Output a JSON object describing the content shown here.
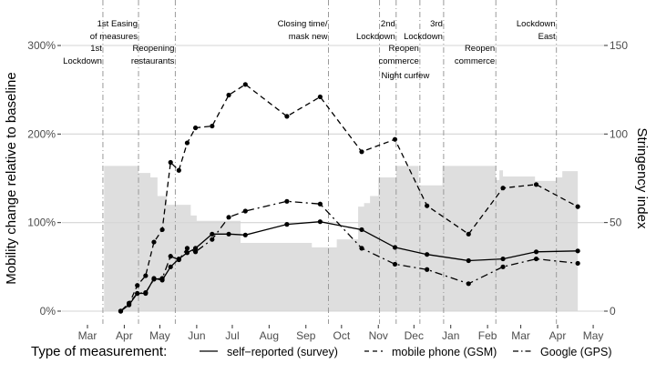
{
  "chart_data": {
    "type": "line",
    "ylabel": "Mobility change relative to baseline",
    "y2label": "Stringency index",
    "ylim": [
      0,
      300
    ],
    "y2lim": [
      0,
      150
    ],
    "xlim": [
      "2020-03-01",
      "2021-05-01"
    ],
    "yticks": [
      "0%",
      "100%",
      "200%",
      "300%"
    ],
    "yticks_values": [
      0,
      100,
      200,
      300
    ],
    "y2ticks": [
      "0",
      "50",
      "100",
      "150"
    ],
    "y2ticks_values": [
      0,
      50,
      100,
      150
    ],
    "xticks": [
      {
        "label": "Mar",
        "date": "2020-03-01"
      },
      {
        "label": "Apr",
        "date": "2020-04-01"
      },
      {
        "label": "May",
        "date": "2020-05-01"
      },
      {
        "label": "Jun",
        "date": "2020-06-01"
      },
      {
        "label": "Jul",
        "date": "2020-07-01"
      },
      {
        "label": "Aug",
        "date": "2020-08-01"
      },
      {
        "label": "Sep",
        "date": "2020-09-01"
      },
      {
        "label": "Oct",
        "date": "2020-10-01"
      },
      {
        "label": "Nov",
        "date": "2020-11-01"
      },
      {
        "label": "Dec",
        "date": "2020-12-01"
      },
      {
        "label": "Jan",
        "date": "2021-01-01"
      },
      {
        "label": "Feb",
        "date": "2021-02-01"
      },
      {
        "label": "Mar",
        "date": "2021-03-01"
      },
      {
        "label": "Apr",
        "date": "2021-04-01"
      },
      {
        "label": "May",
        "date": "2021-05-01"
      }
    ],
    "grid": true,
    "legend": {
      "title": "Type of measurement:",
      "placement": "bottom",
      "entries": [
        "self−reported (survey)",
        "mobile phone (GSM)",
        "Google (GPS)"
      ]
    },
    "series": [
      {
        "name": "self−reported (survey)",
        "style": "solid",
        "x": [
          "2020-03-29",
          "2020-04-05",
          "2020-04-12",
          "2020-04-19",
          "2020-04-26",
          "2020-05-03",
          "2020-05-10",
          "2020-05-17",
          "2020-05-24",
          "2020-05-31",
          "2020-06-14",
          "2020-06-28",
          "2020-07-12",
          "2020-08-16",
          "2020-09-13",
          "2020-10-18",
          "2020-11-15",
          "2020-12-12",
          "2021-01-16",
          "2021-02-14",
          "2021-03-14",
          "2021-04-18"
        ],
        "values": [
          0,
          7,
          20,
          20,
          37,
          35,
          50,
          59,
          66,
          71,
          87,
          87,
          86,
          98,
          101,
          92,
          72,
          64,
          57,
          59,
          67,
          68
        ]
      },
      {
        "name": "mobile phone (GSM)",
        "style": "dashed",
        "x": [
          "2020-03-29",
          "2020-04-05",
          "2020-04-12",
          "2020-04-19",
          "2020-04-26",
          "2020-05-03",
          "2020-05-10",
          "2020-05-17",
          "2020-05-24",
          "2020-05-31",
          "2020-06-14",
          "2020-06-28",
          "2020-07-12",
          "2020-08-16",
          "2020-09-13",
          "2020-10-18",
          "2020-11-15",
          "2020-12-12",
          "2021-01-16",
          "2021-02-14",
          "2021-03-14",
          "2021-04-18"
        ],
        "values": [
          0,
          8,
          29,
          40,
          78,
          92,
          168,
          159,
          190,
          207,
          209,
          244,
          256,
          220,
          242,
          180,
          194,
          119,
          87,
          139,
          143,
          118
        ]
      },
      {
        "name": "Google (GPS)",
        "style": "dotdash",
        "x": [
          "2020-03-29",
          "2020-04-05",
          "2020-04-12",
          "2020-04-19",
          "2020-04-26",
          "2020-05-03",
          "2020-05-10",
          "2020-05-17",
          "2020-05-24",
          "2020-05-31",
          "2020-06-14",
          "2020-06-28",
          "2020-07-12",
          "2020-08-16",
          "2020-09-13",
          "2020-10-18",
          "2020-11-15",
          "2020-12-12",
          "2021-01-16",
          "2021-02-14",
          "2021-03-14",
          "2021-04-18"
        ],
        "values": [
          0,
          9,
          20,
          21,
          36,
          37,
          62,
          58,
          71,
          67,
          81,
          106,
          113,
          124,
          121,
          71,
          53,
          47,
          31,
          50,
          59,
          54
        ]
      }
    ],
    "stringency": {
      "name": "Stringency index",
      "axis": "right",
      "type": "step-area",
      "steps": [
        [
          "2020-03-15",
          82
        ],
        [
          "2020-04-13",
          78
        ],
        [
          "2020-04-23",
          75.5
        ],
        [
          "2020-04-29",
          65
        ],
        [
          "2020-05-07",
          60
        ],
        [
          "2020-05-27",
          54
        ],
        [
          "2020-06-01",
          51
        ],
        [
          "2020-07-08",
          38.5
        ],
        [
          "2020-09-06",
          36
        ],
        [
          "2020-09-27",
          40.5
        ],
        [
          "2020-10-15",
          59
        ],
        [
          "2020-10-20",
          61
        ],
        [
          "2020-10-25",
          65
        ],
        [
          "2020-11-01",
          75.5
        ],
        [
          "2020-11-16",
          82
        ],
        [
          "2020-12-05",
          71
        ],
        [
          "2020-12-25",
          82
        ],
        [
          "2021-02-08",
          74
        ],
        [
          "2021-02-11",
          79.5
        ],
        [
          "2021-02-14",
          76
        ],
        [
          "2021-03-13",
          73.5
        ],
        [
          "2021-03-31",
          75.5
        ],
        [
          "2021-04-05",
          79
        ]
      ],
      "end": "2021-04-18"
    },
    "annotations": [
      {
        "date": "2020-03-14",
        "lines": [
          "1st",
          "Lockdown"
        ],
        "row": "lower",
        "align": "right"
      },
      {
        "date": "2020-04-13",
        "lines": [
          "1st Easing",
          "of measures"
        ],
        "row": "upper",
        "align": "right"
      },
      {
        "date": "2020-05-14",
        "lines": [
          "Reopening",
          "restaurants"
        ],
        "row": "lower",
        "align": "right"
      },
      {
        "date": "2020-09-20",
        "lines": [
          "Closing time/",
          "mask new"
        ],
        "row": "upper",
        "align": "right"
      },
      {
        "date": "2020-11-02",
        "lines": [
          "Night curfew"
        ],
        "row": "lower",
        "align": "left"
      },
      {
        "date": "2020-11-16",
        "lines": [
          "2nd",
          "Lockdown"
        ],
        "row": "upper",
        "align": "right"
      },
      {
        "date": "2020-12-06",
        "lines": [
          "Reopen",
          "commerce"
        ],
        "row": "lower",
        "align": "right"
      },
      {
        "date": "2020-12-26",
        "lines": [
          "3rd",
          "Lockdown"
        ],
        "row": "upper",
        "align": "right"
      },
      {
        "date": "2021-02-08",
        "lines": [
          "Reopen",
          "commerce"
        ],
        "row": "lower",
        "align": "right"
      },
      {
        "date": "2021-03-31",
        "lines": [
          "Lockdown",
          "East"
        ],
        "row": "upper",
        "align": "right"
      }
    ]
  }
}
